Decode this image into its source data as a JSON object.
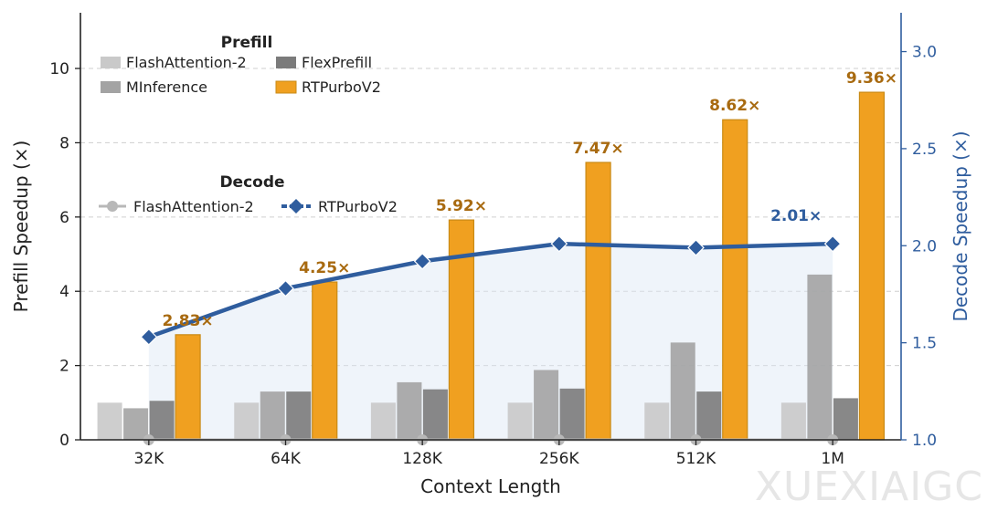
{
  "chart_data": {
    "type": "bar",
    "xlabel": "Context Length",
    "ylabel_left": "Prefill Speedup (×)",
    "ylabel_right": "Decode Speedup (×)",
    "categories": [
      "32K",
      "64K",
      "128K",
      "256K",
      "512K",
      "1M"
    ],
    "ylim_left": [
      0,
      11.5
    ],
    "yticks_left": [
      "0",
      "2",
      "4",
      "6",
      "8",
      "10"
    ],
    "ylim_right": [
      1.0,
      3.2
    ],
    "yticks_right": [
      "1.0",
      "1.5",
      "2.0",
      "2.5",
      "3.0"
    ],
    "grid": "horizontal dashed",
    "prefill_series": [
      {
        "name": "FlashAttention-2",
        "values": [
          1.0,
          1.0,
          1.0,
          1.0,
          1.0,
          1.0
        ],
        "color": "#c9c9c9"
      },
      {
        "name": "MInference",
        "values": [
          0.85,
          1.3,
          1.55,
          1.88,
          2.62,
          4.45
        ],
        "color": "#a3a3a3"
      },
      {
        "name": "FlexPrefill",
        "values": [
          1.05,
          1.3,
          1.36,
          1.38,
          1.3,
          1.12
        ],
        "color": "#7b7b7b"
      },
      {
        "name": "RTPurboV2",
        "values": [
          2.83,
          4.25,
          5.92,
          7.47,
          8.62,
          9.36
        ],
        "color": "#f0a020"
      }
    ],
    "prefill_labels": [
      "2.83×",
      "4.25×",
      "5.92×",
      "7.47×",
      "8.62×",
      "9.36×"
    ],
    "decode_series": [
      {
        "name": "FlashAttention-2",
        "values": [
          1.0,
          1.0,
          1.0,
          1.0,
          1.0,
          1.0
        ],
        "color": "#b8b8b8"
      },
      {
        "name": "RTPurboV2",
        "values": [
          1.53,
          1.78,
          1.92,
          2.01,
          1.99,
          2.01
        ],
        "color": "#2f5d9e"
      }
    ],
    "decode_label": "2.01×",
    "legend": {
      "placement": "top-left",
      "prefill_title": "Prefill",
      "decode_title": "Decode"
    },
    "colors": {
      "label_orange": "#a86a10",
      "label_blue": "#2f5d9e",
      "right_axis": "#2f5d9e"
    }
  },
  "watermark": "XUEXIAIGC"
}
